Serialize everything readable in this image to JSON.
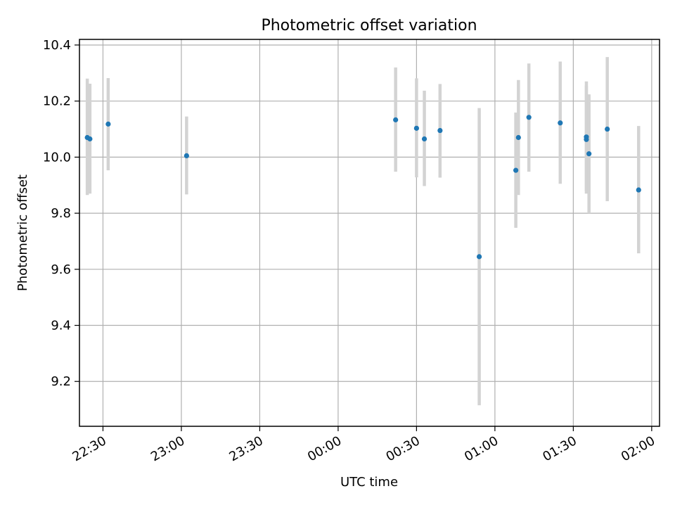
{
  "chart_data": {
    "type": "scatter",
    "title": "Photometric offset variation",
    "xlabel": "UTC time",
    "ylabel": "Photometric offset",
    "xlim": [
      "22:21",
      "02:03"
    ],
    "ylim": [
      9.04,
      10.42
    ],
    "x_ticks": [
      "22:30",
      "23:00",
      "23:30",
      "00:00",
      "00:30",
      "01:00",
      "01:30",
      "02:00"
    ],
    "y_ticks": [
      "9.2",
      "9.4",
      "9.6",
      "9.8",
      "10.0",
      "10.2",
      "10.4"
    ],
    "grid": true,
    "marker_color": "#1f77b4",
    "errorbar_color": "#d3d3d3",
    "points": [
      {
        "x": "22:24",
        "y": 10.07,
        "err_low": 9.865,
        "err_high": 10.28
      },
      {
        "x": "22:25",
        "y": 10.065,
        "err_low": 9.87,
        "err_high": 10.262
      },
      {
        "x": "22:32",
        "y": 10.118,
        "err_low": 9.953,
        "err_high": 10.282
      },
      {
        "x": "23:02",
        "y": 10.005,
        "err_low": 9.867,
        "err_high": 10.145
      },
      {
        "x": "00:22",
        "y": 10.133,
        "err_low": 9.948,
        "err_high": 10.32
      },
      {
        "x": "00:30",
        "y": 10.103,
        "err_low": 9.928,
        "err_high": 10.281
      },
      {
        "x": "00:33",
        "y": 10.065,
        "err_low": 9.897,
        "err_high": 10.237
      },
      {
        "x": "00:39",
        "y": 10.095,
        "err_low": 9.927,
        "err_high": 10.261
      },
      {
        "x": "00:54",
        "y": 9.645,
        "err_low": 9.115,
        "err_high": 10.175
      },
      {
        "x": "01:08",
        "y": 9.953,
        "err_low": 9.748,
        "err_high": 10.159
      },
      {
        "x": "01:09",
        "y": 10.07,
        "err_low": 9.865,
        "err_high": 10.275
      },
      {
        "x": "01:13",
        "y": 10.142,
        "err_low": 9.948,
        "err_high": 10.334
      },
      {
        "x": "01:25",
        "y": 10.122,
        "err_low": 9.905,
        "err_high": 10.341
      },
      {
        "x": "01:35",
        "y": 10.063,
        "err_low": 9.87,
        "err_high": 10.255
      },
      {
        "x": "01:35",
        "y": 10.072,
        "err_low": 9.88,
        "err_high": 10.27
      },
      {
        "x": "01:36",
        "y": 10.012,
        "err_low": 9.8,
        "err_high": 10.224
      },
      {
        "x": "01:43",
        "y": 10.1,
        "err_low": 9.843,
        "err_high": 10.357
      },
      {
        "x": "01:55",
        "y": 9.883,
        "err_low": 9.657,
        "err_high": 10.111
      }
    ]
  }
}
